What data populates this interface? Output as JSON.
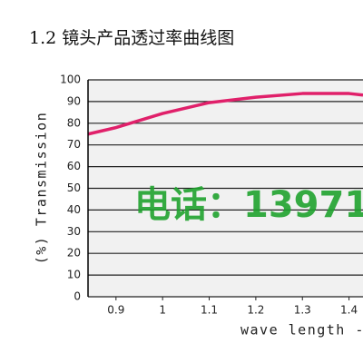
{
  "chart_data": {
    "type": "line",
    "title": "1.2 镜头产品透过率曲线图",
    "x_label": "wave length -",
    "y_label": "(%) Transmission",
    "watermark": "电话：13971",
    "x": [
      0.84,
      0.9,
      1.0,
      1.1,
      1.2,
      1.3,
      1.4,
      1.43
    ],
    "series": [
      {
        "color": "#e0206a",
        "values": [
          75,
          78,
          84.5,
          89.5,
          92,
          93.7,
          93.7,
          93
        ]
      }
    ],
    "xlim": [
      0.84,
      1.43
    ],
    "xticks": [
      0.9,
      1,
      1.1,
      1.2,
      1.3,
      1.4
    ],
    "ylim": [
      0,
      100
    ],
    "yticks": [
      0,
      10,
      20,
      30,
      40,
      50,
      60,
      70,
      80,
      90,
      100
    ],
    "grid": true
  }
}
